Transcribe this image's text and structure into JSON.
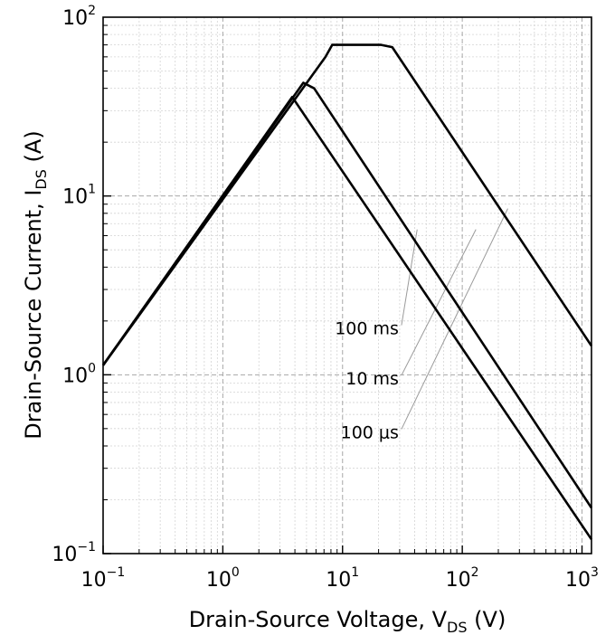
{
  "chart_data": {
    "type": "line",
    "xscale": "log",
    "yscale": "log",
    "xlim": [
      0.1,
      1200
    ],
    "ylim": [
      0.1,
      100
    ],
    "grid": true,
    "xlabel": {
      "main": "Drain-Source Voltage, V",
      "sub": "DS",
      "unit": " (V)"
    },
    "ylabel": {
      "main": "Drain-Source Current, I",
      "sub": "DS",
      "unit": " (A)"
    },
    "xticks": [
      {
        "value": 0.1,
        "base": "10",
        "exp": "−1"
      },
      {
        "value": 1,
        "base": "10",
        "exp": "0"
      },
      {
        "value": 10,
        "base": "10",
        "exp": "1"
      },
      {
        "value": 100,
        "base": "10",
        "exp": "2"
      },
      {
        "value": 1000,
        "base": "10",
        "exp": "3"
      }
    ],
    "yticks": [
      {
        "value": 0.1,
        "base": "10",
        "exp": "−1"
      },
      {
        "value": 1,
        "base": "10",
        "exp": "0"
      },
      {
        "value": 10,
        "base": "10",
        "exp": "1"
      },
      {
        "value": 100,
        "base": "10",
        "exp": "2"
      }
    ],
    "series": [
      {
        "x": [
          0.1,
          7.2,
          8.2,
          21,
          26,
          1200
        ],
        "y": [
          1.13,
          60,
          70,
          70,
          68,
          1.45
        ]
      },
      {
        "x": [
          0.1,
          4.7,
          5.8,
          1200
        ],
        "y": [
          1.13,
          43,
          40,
          0.18
        ]
      },
      {
        "x": [
          0.1,
          3.8,
          1200
        ],
        "y": [
          1.13,
          35.8,
          0.12
        ]
      }
    ],
    "annotations": [
      {
        "text": "100 ms",
        "label_x": 30,
        "label_y": 1.85,
        "target_x": 42,
        "target_y": 6.5
      },
      {
        "text": "10 ms",
        "label_x": 30,
        "label_y": 0.97,
        "target_x": 130,
        "target_y": 6.5
      },
      {
        "text": "100 μs",
        "label_x": 30,
        "label_y": 0.485,
        "target_x": 240,
        "target_y": 8.5
      }
    ]
  }
}
